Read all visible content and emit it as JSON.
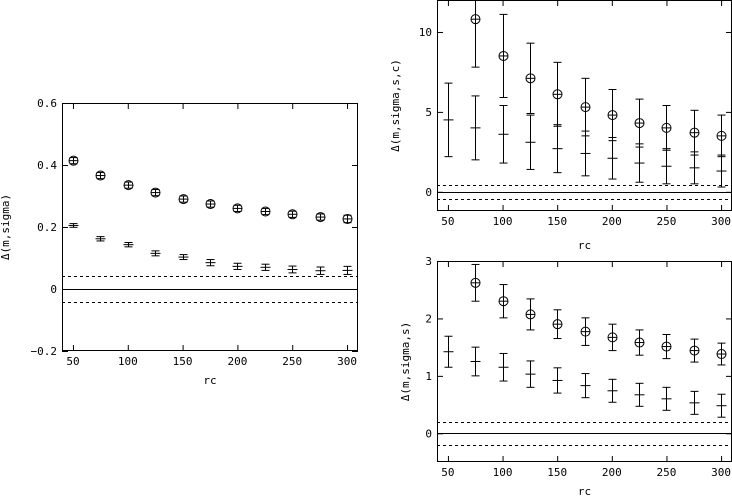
{
  "chart_data": [
    {
      "type": "scatter",
      "xlabel": "rc",
      "ylabel": "Δ(m,sigma)",
      "xlim": [
        40,
        310
      ],
      "ylim": [
        -0.2,
        0.6
      ],
      "xticks": [
        50,
        100,
        150,
        200,
        250,
        300
      ],
      "xtick_labels": [
        "50",
        "100",
        "150",
        "200",
        "250",
        "300"
      ],
      "yticks": [
        -0.2,
        0,
        0.2,
        0.4,
        0.6
      ],
      "ytick_labels": [
        "−0.2",
        "0",
        "0.2",
        "0.4",
        "0.6"
      ],
      "grid": false,
      "reference_lines": [
        {
          "y": 0,
          "style": "solid"
        },
        {
          "y": 0.043,
          "style": "dashed"
        },
        {
          "y": -0.043,
          "style": "dashed"
        }
      ],
      "series": [
        {
          "marker": "circle",
          "x": [
            50,
            75,
            100,
            125,
            150,
            175,
            200,
            225,
            250,
            275,
            300
          ],
          "y": [
            0.414,
            0.366,
            0.335,
            0.311,
            0.29,
            0.274,
            0.26,
            0.25,
            0.241,
            0.232,
            0.226
          ],
          "err": [
            0.01,
            0.01,
            0.01,
            0.01,
            0.01,
            0.01,
            0.01,
            0.01,
            0.01,
            0.01,
            0.012
          ]
        },
        {
          "marker": "plus",
          "x": [
            50,
            75,
            100,
            125,
            150,
            175,
            200,
            225,
            250,
            275,
            300
          ],
          "y": [
            0.205,
            0.162,
            0.143,
            0.115,
            0.103,
            0.085,
            0.073,
            0.07,
            0.063,
            0.059,
            0.06
          ],
          "err": [
            0.006,
            0.007,
            0.007,
            0.008,
            0.008,
            0.01,
            0.01,
            0.01,
            0.011,
            0.012,
            0.013
          ]
        }
      ]
    },
    {
      "type": "scatter",
      "xlabel": "rc",
      "ylabel": "Δ(m,sigma,s,c)",
      "xlim": [
        40,
        310
      ],
      "ylim": [
        -1.2,
        12
      ],
      "xticks": [
        50,
        100,
        150,
        200,
        250,
        300
      ],
      "xtick_labels": [
        "50",
        "100",
        "150",
        "200",
        "250",
        "300"
      ],
      "yticks": [
        0,
        5,
        10
      ],
      "ytick_labels": [
        "0",
        "5",
        "10"
      ],
      "grid": false,
      "reference_lines": [
        {
          "y": 0,
          "style": "solid"
        },
        {
          "y": 0.45,
          "style": "dashed"
        },
        {
          "y": -0.45,
          "style": "dashed"
        }
      ],
      "series": [
        {
          "marker": "circle",
          "x": [
            75,
            100,
            125,
            150,
            175,
            200,
            225,
            250,
            275,
            300
          ],
          "y": [
            10.8,
            8.5,
            7.1,
            6.1,
            5.3,
            4.8,
            4.3,
            4.0,
            3.7,
            3.5
          ],
          "err": [
            3.0,
            2.6,
            2.2,
            2.0,
            1.8,
            1.6,
            1.5,
            1.4,
            1.4,
            1.3
          ]
        },
        {
          "marker": "plus",
          "x": [
            50,
            75,
            100,
            125,
            150,
            175,
            200,
            225,
            250,
            275,
            300
          ],
          "y": [
            4.5,
            4.0,
            3.6,
            3.1,
            2.7,
            2.4,
            2.1,
            1.8,
            1.6,
            1.5,
            1.3
          ],
          "err": [
            2.3,
            2.0,
            1.8,
            1.7,
            1.5,
            1.4,
            1.3,
            1.2,
            1.1,
            1.0,
            1.0
          ]
        }
      ]
    },
    {
      "type": "scatter",
      "xlabel": "rc",
      "ylabel": "Δ(m,sigma,s)",
      "xlim": [
        40,
        310
      ],
      "ylim": [
        -0.5,
        3
      ],
      "xticks": [
        50,
        100,
        150,
        200,
        250,
        300
      ],
      "xtick_labels": [
        "50",
        "100",
        "150",
        "200",
        "250",
        "300"
      ],
      "yticks": [
        0,
        1,
        2,
        3
      ],
      "ytick_labels": [
        "0",
        "1",
        "2",
        "3"
      ],
      "grid": false,
      "reference_lines": [
        {
          "y": 0,
          "style": "solid"
        },
        {
          "y": 0.2,
          "style": "dashed"
        },
        {
          "y": -0.2,
          "style": "dashed"
        }
      ],
      "series": [
        {
          "marker": "circle",
          "x": [
            75,
            100,
            125,
            150,
            175,
            200,
            225,
            250,
            275,
            300
          ],
          "y": [
            2.62,
            2.3,
            2.07,
            1.9,
            1.77,
            1.67,
            1.58,
            1.51,
            1.44,
            1.38
          ],
          "err": [
            0.32,
            0.29,
            0.27,
            0.25,
            0.24,
            0.23,
            0.22,
            0.21,
            0.2,
            0.19
          ]
        },
        {
          "marker": "plus",
          "x": [
            50,
            75,
            100,
            125,
            150,
            175,
            200,
            225,
            250,
            275,
            300
          ],
          "y": [
            1.42,
            1.25,
            1.15,
            1.03,
            0.92,
            0.83,
            0.74,
            0.67,
            0.6,
            0.53,
            0.48
          ],
          "err": [
            0.27,
            0.25,
            0.24,
            0.23,
            0.22,
            0.21,
            0.2,
            0.2,
            0.2,
            0.2,
            0.2
          ]
        }
      ]
    }
  ]
}
